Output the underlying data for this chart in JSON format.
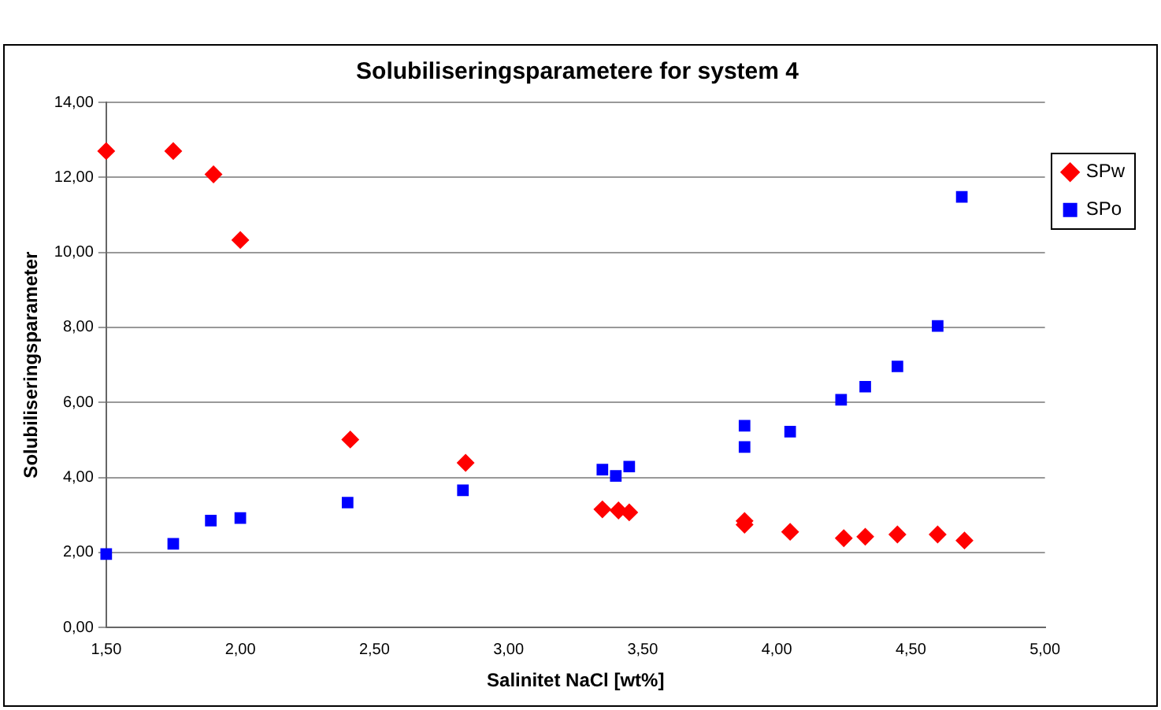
{
  "chart_data": {
    "type": "scatter",
    "title": "Solubiliseringsparametere for system 4",
    "xlabel": "Salinitet NaCl [wt%]",
    "ylabel": "Solubiliseringsparameter",
    "series": [
      {
        "name": "SPw",
        "color": "#ff0000",
        "marker": "diamond",
        "x": [
          1.5,
          1.75,
          1.9,
          2.0,
          2.41,
          2.84,
          3.35,
          3.41,
          3.45,
          3.88,
          3.88,
          4.05,
          4.25,
          4.33,
          4.45,
          4.6,
          4.7
        ],
        "values": [
          12.7,
          12.7,
          12.08,
          10.33,
          5.01,
          4.39,
          3.15,
          3.12,
          3.07,
          2.84,
          2.74,
          2.55,
          2.38,
          2.42,
          2.48,
          2.48,
          2.32
        ]
      },
      {
        "name": "SPo",
        "color": "#0000ff",
        "marker": "square",
        "x": [
          1.5,
          1.75,
          1.89,
          2.0,
          2.4,
          2.83,
          3.35,
          3.4,
          3.45,
          3.88,
          3.88,
          4.05,
          4.24,
          4.33,
          4.45,
          4.6,
          4.69
        ],
        "values": [
          1.96,
          2.23,
          2.85,
          2.92,
          3.33,
          3.66,
          4.21,
          4.04,
          4.29,
          5.38,
          4.81,
          5.22,
          6.07,
          6.42,
          6.96,
          8.04,
          11.48
        ]
      }
    ],
    "xlim": [
      1.5,
      5
    ],
    "xticks": [
      {
        "value": 1.5,
        "label": "1,50"
      },
      {
        "value": 2,
        "label": "2,00"
      },
      {
        "value": 2.5,
        "label": "2,50"
      },
      {
        "value": 3,
        "label": "3,00"
      },
      {
        "value": 3.5,
        "label": "3,50"
      },
      {
        "value": 4,
        "label": "4,00"
      },
      {
        "value": 4.5,
        "label": "4,50"
      },
      {
        "value": 5,
        "label": "5,00"
      }
    ],
    "ylim": [
      0,
      14
    ],
    "yticks": [
      {
        "value": 0,
        "label": "0,00"
      },
      {
        "value": 2,
        "label": "2,00"
      },
      {
        "value": 4,
        "label": "4,00"
      },
      {
        "value": 6,
        "label": "6,00"
      },
      {
        "value": 8,
        "label": "8,00"
      },
      {
        "value": 10,
        "label": "10,00"
      },
      {
        "value": 12,
        "label": "12,00"
      },
      {
        "value": 14,
        "label": "14,00"
      }
    ],
    "grid": "y",
    "legend": "right"
  }
}
